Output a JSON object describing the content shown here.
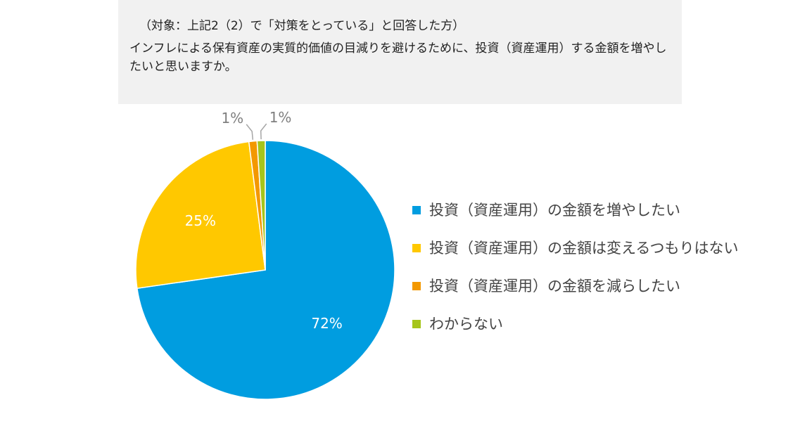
{
  "header": {
    "target": "（対象：上記2（2）で「対策をとっている」と回答した方）",
    "question": "インフレによる保有資産の実質的価値の目減りを避けるために、投資（資産運用）する金額を増やしたいと思いますか。"
  },
  "chart_data": {
    "type": "pie",
    "title": "",
    "slices": [
      {
        "name": "投資（資産運用）の金額を増やしたい",
        "value": 72,
        "label": "72%",
        "color": "#009de0"
      },
      {
        "name": "投資（資産運用）の金額は変えるつもりはない",
        "value": 25,
        "label": "25%",
        "color": "#ffc800"
      },
      {
        "name": "投資（資産運用）の金額を減らしたい",
        "value": 1,
        "label": "1%",
        "color": "#f39800"
      },
      {
        "name": "わからない",
        "value": 1,
        "label": "1%",
        "color": "#a6c51b"
      }
    ],
    "legend_position": "right"
  }
}
